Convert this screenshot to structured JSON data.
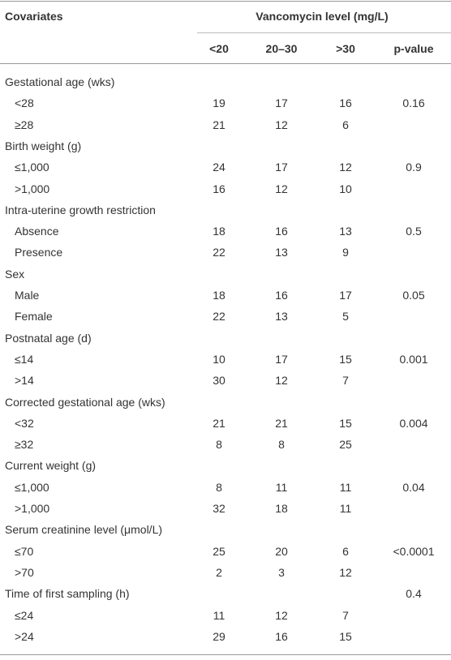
{
  "table": {
    "header": {
      "covariates": "Covariates",
      "group": "Vancomycin level (mg/L)",
      "columns": [
        "<20",
        "20–30",
        ">30",
        "p-value"
      ]
    },
    "groups": [
      {
        "label": "Gestational age (wks)",
        "rows": [
          {
            "label": "<28",
            "values": [
              19,
              17,
              16
            ],
            "p_value": 0.16
          },
          {
            "label": "≥28",
            "values": [
              21,
              12,
              6
            ]
          }
        ]
      },
      {
        "label": "Birth weight (g)",
        "rows": [
          {
            "label": "≤1,000",
            "values": [
              24,
              17,
              12
            ],
            "p_value": 0.9
          },
          {
            "label": ">1,000",
            "values": [
              16,
              12,
              10
            ]
          }
        ]
      },
      {
        "label": "Intra-uterine growth restriction",
        "rows": [
          {
            "label": "Absence",
            "values": [
              18,
              16,
              13
            ],
            "p_value": 0.5
          },
          {
            "label": "Presence",
            "values": [
              22,
              13,
              9
            ]
          }
        ]
      },
      {
        "label": "Sex",
        "rows": [
          {
            "label": "Male",
            "values": [
              18,
              16,
              17
            ],
            "p_value": 0.05
          },
          {
            "label": "Female",
            "values": [
              22,
              13,
              5
            ]
          }
        ]
      },
      {
        "label": "Postnatal age (d)",
        "rows": [
          {
            "label": "≤14",
            "values": [
              10,
              17,
              15
            ],
            "p_value": 0.001
          },
          {
            "label": ">14",
            "values": [
              30,
              12,
              7
            ]
          }
        ]
      },
      {
        "label": "Corrected gestational age (wks)",
        "rows": [
          {
            "label": "<32",
            "values": [
              21,
              21,
              15
            ],
            "p_value": 0.004
          },
          {
            "label": "≥32",
            "values": [
              8,
              8,
              25
            ]
          }
        ]
      },
      {
        "label": "Current weight (g)",
        "rows": [
          {
            "label": "≤1,000",
            "values": [
              8,
              11,
              11
            ],
            "p_value": 0.04
          },
          {
            "label": ">1,000",
            "values": [
              32,
              18,
              11
            ]
          }
        ]
      },
      {
        "label": "Serum creatinine level (μmol/L)",
        "rows": [
          {
            "label": "≤70",
            "values": [
              25,
              20,
              6
            ],
            "p_value": "<0.0001"
          },
          {
            "label": ">70",
            "values": [
              2,
              3,
              12
            ]
          }
        ]
      },
      {
        "label": "Time of first sampling (h)",
        "p_value": 0.4,
        "rows": [
          {
            "label": "≤24",
            "values": [
              11,
              12,
              7
            ]
          },
          {
            "label": ">24",
            "values": [
              29,
              16,
              15
            ]
          }
        ]
      }
    ]
  }
}
